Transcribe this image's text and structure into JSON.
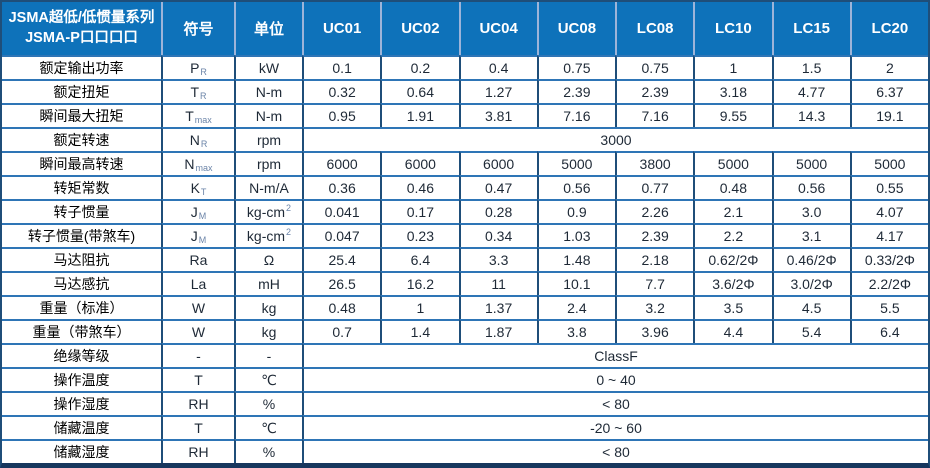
{
  "table": {
    "title_line1": "JSMA超低/低惯量系列",
    "title_line2": "JSMA-P口口口口",
    "symbol_header": "符号",
    "unit_header": "单位",
    "model_columns": [
      "UC01",
      "UC02",
      "UC04",
      "UC08",
      "LC08",
      "LC10",
      "LC15",
      "LC20"
    ],
    "rows": [
      {
        "label": "额定输出功率",
        "symbol": "P",
        "symbol_sub": "R",
        "unit": "kW",
        "values": [
          "0.1",
          "0.2",
          "0.4",
          "0.75",
          "0.75",
          "1",
          "1.5",
          "2"
        ]
      },
      {
        "label": "额定扭矩",
        "symbol": "T",
        "symbol_sub": "R",
        "unit": "N-m",
        "values": [
          "0.32",
          "0.64",
          "1.27",
          "2.39",
          "2.39",
          "3.18",
          "4.77",
          "6.37"
        ]
      },
      {
        "label": "瞬间最大扭矩",
        "symbol": "T",
        "symbol_sub": "max",
        "unit": "N-m",
        "values": [
          "0.95",
          "1.91",
          "3.81",
          "7.16",
          "7.16",
          "9.55",
          "14.3",
          "19.1"
        ]
      },
      {
        "label": "额定转速",
        "symbol": "N",
        "symbol_sub": "R",
        "unit": "rpm",
        "merged": "3000"
      },
      {
        "label": "瞬间最高转速",
        "symbol": "N",
        "symbol_sub": "max",
        "unit": "rpm",
        "values": [
          "6000",
          "6000",
          "6000",
          "5000",
          "3800",
          "5000",
          "5000",
          "5000"
        ]
      },
      {
        "label": "转矩常数",
        "symbol": "K",
        "symbol_sub": "T",
        "unit": "N-m/A",
        "values": [
          "0.36",
          "0.46",
          "0.47",
          "0.56",
          "0.77",
          "0.48",
          "0.56",
          "0.55"
        ]
      },
      {
        "label": "转子惯量",
        "symbol": "J",
        "symbol_sub": "M",
        "unit": "kg-cm",
        "unit_sup": "2",
        "values": [
          "0.041",
          "0.17",
          "0.28",
          "0.9",
          "2.26",
          "2.1",
          "3.0",
          "4.07"
        ]
      },
      {
        "label": "转子惯量(带煞车)",
        "symbol": "J",
        "symbol_sub": "M",
        "unit": "kg-cm",
        "unit_sup": "2",
        "values": [
          "0.047",
          "0.23",
          "0.34",
          "1.03",
          "2.39",
          "2.2",
          "3.1",
          "4.17"
        ]
      },
      {
        "label": "马达阻抗",
        "symbol": "Ra",
        "unit": "Ω",
        "values": [
          "25.4",
          "6.4",
          "3.3",
          "1.48",
          "2.18",
          "0.62/2Φ",
          "0.46/2Φ",
          "0.33/2Φ"
        ]
      },
      {
        "label": "马达感抗",
        "symbol": "La",
        "unit": "mH",
        "values": [
          "26.5",
          "16.2",
          "11",
          "10.1",
          "7.7",
          "3.6/2Φ",
          "3.0/2Φ",
          "2.2/2Φ"
        ]
      },
      {
        "label": "重量（标准）",
        "symbol": "W",
        "unit": "kg",
        "values": [
          "0.48",
          "1",
          "1.37",
          "2.4",
          "3.2",
          "3.5",
          "4.5",
          "5.5"
        ]
      },
      {
        "label": "重量（带煞车）",
        "symbol": "W",
        "unit": "kg",
        "values": [
          "0.7",
          "1.4",
          "1.87",
          "3.8",
          "3.96",
          "4.4",
          "5.4",
          "6.4"
        ]
      },
      {
        "label": "绝缘等级",
        "symbol": "-",
        "unit": "-",
        "merged": "ClassF"
      },
      {
        "label": "操作温度",
        "symbol": "T",
        "unit": "℃",
        "merged": "0 ~ 40"
      },
      {
        "label": "操作湿度",
        "symbol": "RH",
        "unit": "%",
        "merged": "< 80"
      },
      {
        "label": "储藏温度",
        "symbol": "T",
        "unit": "℃",
        "merged": "-20 ~ 60"
      },
      {
        "label": "储藏湿度",
        "symbol": "RH",
        "unit": "%",
        "merged": "< 80"
      }
    ],
    "colors": {
      "header_bg": "#0E72BA",
      "border_dark": "#1F4E79",
      "border_row": "#2E75B6",
      "header_divider": "#9DB4D9",
      "bottom_bar": "#17375E",
      "text": "#1E2936",
      "subscript": "#6B84A8"
    }
  }
}
